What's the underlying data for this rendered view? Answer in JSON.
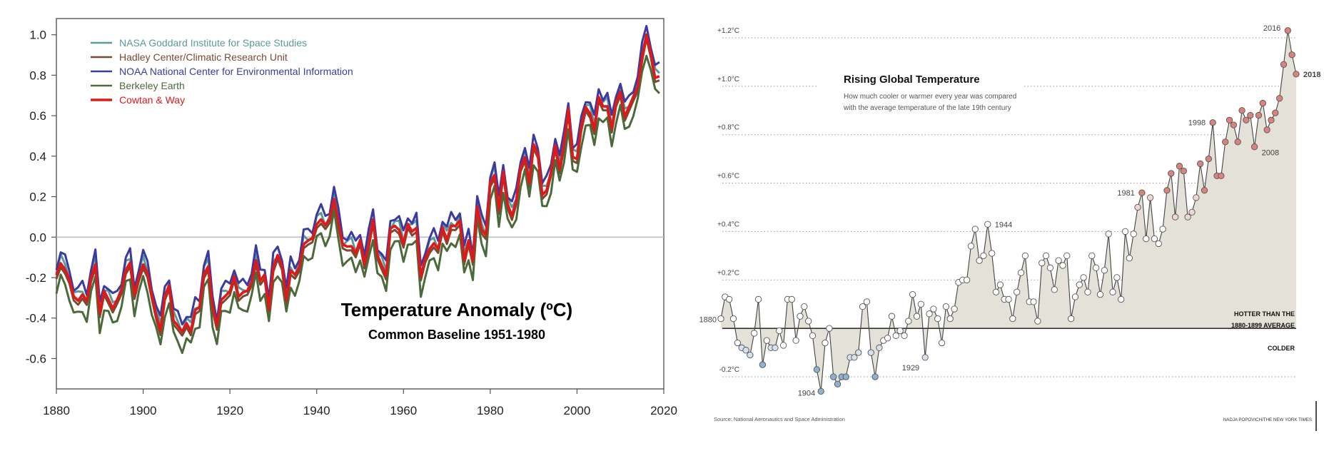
{
  "chart_data": [
    {
      "type": "line",
      "title": "Temperature Anomaly (ºC)",
      "subtitle": "Common Baseline 1951-1980",
      "xlim": [
        1880,
        2020
      ],
      "ylim": [
        -0.75,
        1.08
      ],
      "x_ticks": [
        1880,
        1900,
        1920,
        1940,
        1960,
        1980,
        2000,
        2020
      ],
      "y_ticks": [
        -0.6,
        -0.4,
        -0.2,
        0.0,
        0.2,
        0.4,
        0.6,
        0.8,
        1.0
      ],
      "y_tick_labels": [
        "-0.6",
        "-0.4",
        "-0.2",
        "0.0",
        "0.2",
        "0.4",
        "0.6",
        "0.8",
        "1.0"
      ],
      "zero_line": true,
      "legend_position": "top-left",
      "series": [
        {
          "name": "NASA Goddard Institute for Space Studies",
          "color": "#5a9a9a",
          "offset": 0.02
        },
        {
          "name": "Hadley Center/Climatic Research Unit",
          "color": "#7a4a30",
          "offset": -0.02
        },
        {
          "name": "NOAA National Center for Environmental Information",
          "color": "#3a3aa0",
          "offset": 0.05
        },
        {
          "name": "Berkeley Earth",
          "color": "#4a6a3a",
          "offset": -0.08
        },
        {
          "name": "Cowtan & Way",
          "color": "#e01818",
          "offset": 0.0
        }
      ],
      "years_start": 1880,
      "baseline_values": [
        -0.2,
        -0.12,
        -0.15,
        -0.22,
        -0.3,
        -0.3,
        -0.28,
        -0.33,
        -0.2,
        -0.12,
        -0.38,
        -0.28,
        -0.3,
        -0.34,
        -0.32,
        -0.27,
        -0.15,
        -0.12,
        -0.3,
        -0.2,
        -0.12,
        -0.18,
        -0.3,
        -0.38,
        -0.45,
        -0.3,
        -0.25,
        -0.4,
        -0.43,
        -0.48,
        -0.43,
        -0.45,
        -0.36,
        -0.36,
        -0.18,
        -0.13,
        -0.35,
        -0.45,
        -0.3,
        -0.28,
        -0.28,
        -0.2,
        -0.28,
        -0.27,
        -0.28,
        -0.22,
        -0.1,
        -0.22,
        -0.2,
        -0.35,
        -0.14,
        -0.1,
        -0.15,
        -0.3,
        -0.16,
        -0.2,
        -0.15,
        -0.02,
        -0.02,
        -0.02,
        0.07,
        0.1,
        0.05,
        0.08,
        0.2,
        0.08,
        -0.05,
        -0.05,
        -0.03,
        -0.08,
        -0.03,
        -0.13,
        -0.02,
        0.08,
        -0.1,
        -0.13,
        -0.18,
        0.03,
        0.05,
        0.05,
        -0.03,
        0.05,
        0.03,
        0.06,
        -0.2,
        -0.12,
        -0.05,
        -0.02,
        -0.07,
        0.04,
        0.0,
        0.06,
        0.04,
        0.08,
        -0.1,
        -0.02,
        -0.13,
        0.16,
        0.05,
        0.0,
        0.26,
        0.32,
        0.14,
        0.31,
        0.16,
        0.12,
        0.18,
        0.33,
        0.4,
        0.28,
        0.45,
        0.4,
        0.22,
        0.24,
        0.31,
        0.45,
        0.35,
        0.46,
        0.62,
        0.4,
        0.4,
        0.54,
        0.63,
        0.62,
        0.54,
        0.68,
        0.64,
        0.66,
        0.54,
        0.65,
        0.72,
        0.61,
        0.64,
        0.68,
        0.75,
        0.9,
        0.99,
        0.9,
        0.8,
        0.8
      ],
      "source": "",
      "credit": ""
    },
    {
      "type": "scatter",
      "title": "Rising Global Temperature",
      "subtitle": "How much cooler or warmer every year was compared with the average temperature of the late 19th century",
      "subtitle_lines": [
        "How much cooler or warmer every year was compared",
        "with the average temperature of the late 19th century"
      ],
      "xlim": [
        1880,
        2018
      ],
      "ylim": [
        -0.25,
        1.25
      ],
      "y_ticks": [
        -0.2,
        0.2,
        0.4,
        0.6,
        0.8,
        1.0,
        1.2
      ],
      "y_tick_labels": [
        "-0.2°C",
        "+0.2°C",
        "+0.4°C",
        "+0.6°C",
        "+0.8°C",
        "+1.0°C",
        "+1.2°C"
      ],
      "baseline_label_top": "HOTTER THAN THE",
      "baseline_label_mid": "1880-1899 AVERAGE",
      "baseline_label_bottom": "COLDER",
      "colors": {
        "warm": "#d9837e",
        "cool": "#8fb0cf",
        "neutral": "#ffffff",
        "fill": "#e3e1d8",
        "line": "#444444"
      },
      "year_labels": [
        {
          "year": 1880,
          "text": "1880"
        },
        {
          "year": 1904,
          "text": "1904"
        },
        {
          "year": 1929,
          "text": "1929"
        },
        {
          "year": 1944,
          "text": "1944"
        },
        {
          "year": 1981,
          "text": "1981"
        },
        {
          "year": 1998,
          "text": "1998"
        },
        {
          "year": 2008,
          "text": "2008"
        },
        {
          "year": 2016,
          "text": "2016"
        },
        {
          "year": 2018,
          "text": "2018"
        }
      ],
      "years_start": 1880,
      "values": [
        0.04,
        0.13,
        0.12,
        0.04,
        -0.06,
        -0.08,
        -0.09,
        -0.11,
        -0.02,
        0.12,
        -0.15,
        -0.05,
        -0.08,
        -0.08,
        -0.01,
        -0.07,
        0.12,
        0.12,
        -0.05,
        0.05,
        0.09,
        0.03,
        -0.03,
        -0.17,
        -0.26,
        -0.06,
        0.0,
        -0.2,
        -0.23,
        -0.2,
        -0.2,
        -0.12,
        -0.12,
        -0.1,
        0.09,
        0.11,
        -0.1,
        -0.2,
        -0.08,
        -0.05,
        -0.04,
        0.05,
        -0.03,
        -0.01,
        -0.03,
        0.03,
        0.14,
        0.05,
        0.1,
        -0.12,
        0.06,
        0.08,
        0.04,
        -0.06,
        0.09,
        0.04,
        0.08,
        0.19,
        0.2,
        0.2,
        0.34,
        0.41,
        0.28,
        0.3,
        0.43,
        0.31,
        0.15,
        0.18,
        0.12,
        0.12,
        0.04,
        0.15,
        0.23,
        0.3,
        0.11,
        0.11,
        0.03,
        0.27,
        0.3,
        0.25,
        0.16,
        0.28,
        0.26,
        0.3,
        0.04,
        0.13,
        0.18,
        0.21,
        0.15,
        0.3,
        0.25,
        0.14,
        0.24,
        0.39,
        0.15,
        0.21,
        0.12,
        0.4,
        0.29,
        0.39,
        0.5,
        0.56,
        0.37,
        0.54,
        0.37,
        0.35,
        0.41,
        0.57,
        0.64,
        0.46,
        0.67,
        0.65,
        0.46,
        0.48,
        0.54,
        0.68,
        0.57,
        0.7,
        0.85,
        0.63,
        0.63,
        0.77,
        0.86,
        0.84,
        0.77,
        0.9,
        0.86,
        0.88,
        0.75,
        0.88,
        0.93,
        0.82,
        0.86,
        0.89,
        0.95,
        1.09,
        1.23,
        1.13,
        1.05
      ],
      "source": "Source: National Aeronautics and Space Administration",
      "credit": "NADJA POPOVICH/THE NEW YORK TIMES"
    }
  ]
}
